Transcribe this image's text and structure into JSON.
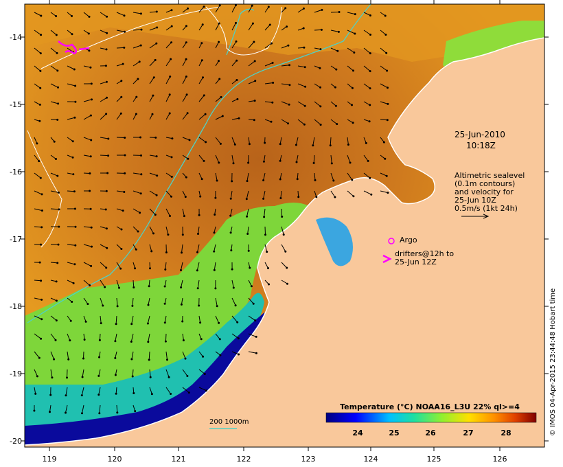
{
  "map": {
    "date_line": "25-Jun-2010",
    "time_line": "10:18Z",
    "altimetry_text": "Altimetric sealevel\n(0.1m contours)\nand velocity for\n25-Jun 10Z\n0.5m/s (1kt 24h)",
    "argo_label": "Argo",
    "drifters_text": "drifters@12h to\n25-Jun 12Z",
    "depth_legend": "200  1000m",
    "colorbar_title": "Temperature (°C) NOAA16_L3U 22% ql>=4",
    "colorbar_ticks": [
      "24",
      "25",
      "26",
      "27",
      "28"
    ],
    "credit": "© IMOS 04-Apr-2015 23:44:48 Hobart time",
    "y_ticks": [
      "-14",
      "-15",
      "-16",
      "-17",
      "-18",
      "-19",
      "-20"
    ],
    "x_ticks": [
      "119",
      "120",
      "121",
      "122",
      "123",
      "124",
      "125",
      "126"
    ]
  },
  "colors": {
    "land": "#f9c79a",
    "sst_warm": "#c8741c",
    "sst_mid": "#e39a1c",
    "sst_cool": "#9adc3a",
    "sst_cold": "#0a0a8c",
    "isobath": "#4fd1c5",
    "contour": "#ffffff",
    "drifter": "#ff00ff"
  }
}
